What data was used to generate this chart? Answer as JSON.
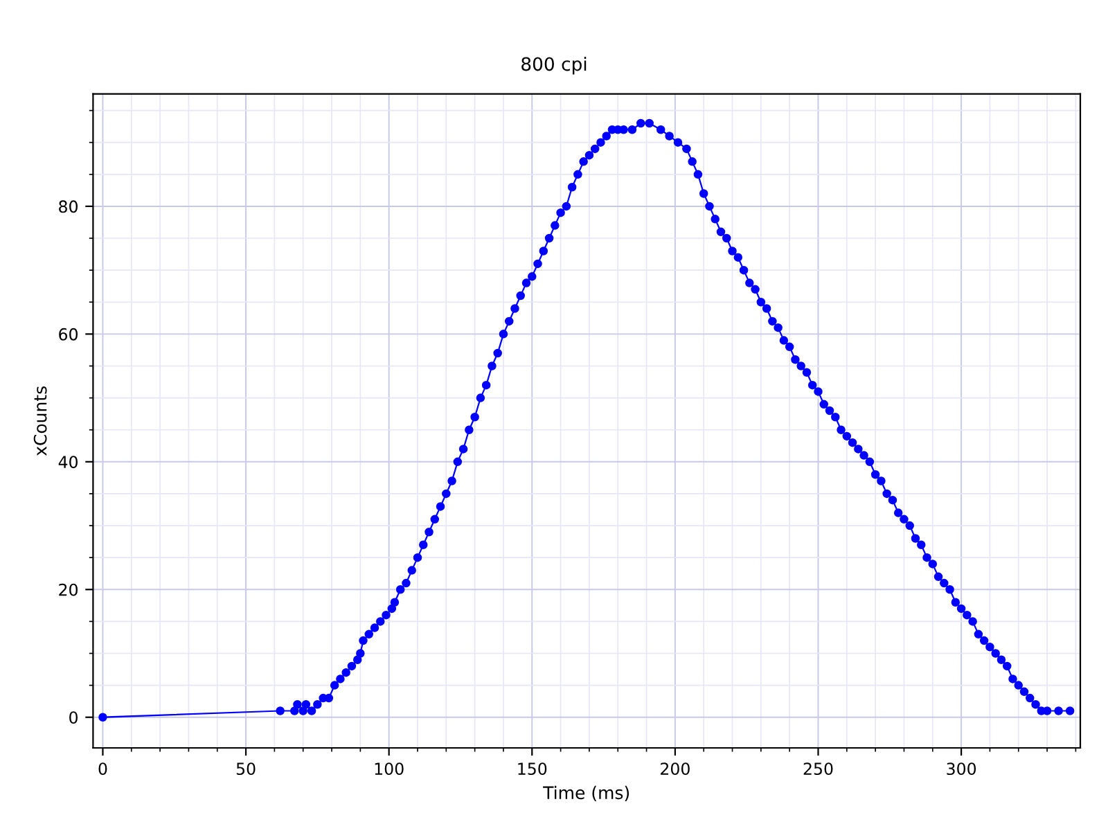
{
  "chart_data": {
    "type": "line",
    "subtitle": "800 cpi",
    "xlabel": "Time (ms)",
    "ylabel": "xCounts",
    "xlim": [
      -3.4,
      341.6
    ],
    "ylim": [
      -4.8,
      97.6
    ],
    "xticks": [
      0,
      50,
      100,
      150,
      200,
      250,
      300
    ],
    "yticks": [
      0,
      20,
      40,
      60,
      80
    ],
    "grid": true,
    "marker": "circle",
    "line_style": "solid",
    "legend": false,
    "series": [
      {
        "color": "#0000ff",
        "x": [
          0,
          62,
          67,
          68,
          70,
          71,
          73,
          75,
          77,
          79,
          81,
          83,
          85,
          87,
          89,
          90,
          91,
          93,
          95,
          97,
          99,
          101,
          102,
          104,
          106,
          108,
          110,
          112,
          114,
          116,
          118,
          120,
          122,
          124,
          126,
          128,
          130,
          132,
          134,
          136,
          138,
          140,
          142,
          144,
          146,
          148,
          150,
          152,
          154,
          156,
          158,
          160,
          162,
          164,
          166,
          168,
          170,
          172,
          174,
          176,
          178,
          180,
          182,
          185,
          188,
          191,
          195,
          198,
          201,
          204,
          206,
          208,
          210,
          212,
          214,
          216,
          218,
          220,
          222,
          224,
          226,
          228,
          230,
          232,
          234,
          236,
          238,
          240,
          242,
          244,
          246,
          248,
          250,
          252,
          254,
          256,
          258,
          260,
          262,
          264,
          266,
          268,
          270,
          272,
          274,
          276,
          278,
          280,
          282,
          284,
          286,
          288,
          290,
          292,
          294,
          296,
          298,
          300,
          302,
          304,
          306,
          308,
          310,
          312,
          314,
          316,
          318,
          320,
          322,
          324,
          326,
          328,
          330,
          334,
          338
        ],
        "values": [
          0,
          1,
          1,
          2,
          1,
          2,
          1,
          2,
          3,
          3,
          5,
          6,
          7,
          8,
          9,
          10,
          12,
          13,
          14,
          15,
          16,
          17,
          18,
          20,
          21,
          23,
          25,
          27,
          29,
          31,
          33,
          35,
          37,
          40,
          42,
          45,
          47,
          50,
          52,
          55,
          57,
          60,
          62,
          64,
          66,
          68,
          69,
          71,
          73,
          75,
          77,
          79,
          80,
          83,
          85,
          87,
          88,
          89,
          90,
          91,
          92,
          92,
          92,
          92,
          93,
          93,
          92,
          91,
          90,
          89,
          87,
          85,
          82,
          80,
          78,
          76,
          75,
          73,
          72,
          70,
          68,
          67,
          65,
          64,
          62,
          61,
          59,
          58,
          56,
          55,
          54,
          52,
          51,
          49,
          48,
          47,
          45,
          44,
          43,
          42,
          41,
          40,
          38,
          37,
          35,
          34,
          32,
          31,
          30,
          28,
          27,
          25,
          24,
          22,
          21,
          20,
          18,
          17,
          16,
          15,
          13,
          12,
          11,
          10,
          9,
          8,
          6,
          5,
          4,
          3,
          2,
          1,
          1,
          1,
          1
        ]
      }
    ]
  }
}
